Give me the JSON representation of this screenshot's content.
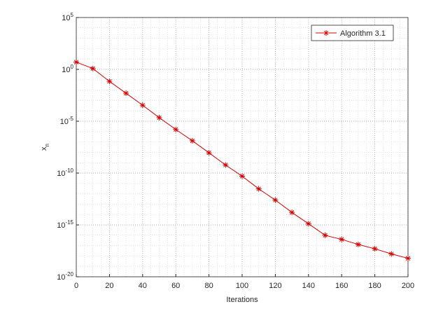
{
  "chart_data": {
    "type": "line",
    "xlabel": "Iterations",
    "ylabel": "x_n",
    "x": [
      0,
      10,
      20,
      30,
      40,
      50,
      60,
      70,
      80,
      90,
      100,
      110,
      120,
      130,
      140,
      150,
      160,
      170,
      180,
      190,
      200
    ],
    "series": [
      {
        "name": "Algorithm 3.1",
        "color": "#d40000",
        "values": [
          5,
          1.2,
          0.07,
          0.005,
          0.00035,
          2.2e-05,
          1.6e-06,
          1.3e-07,
          9e-09,
          6e-10,
          5e-11,
          3e-12,
          2.5e-13,
          1.6e-14,
          1.3e-15,
          1e-16,
          4e-17,
          1.3e-17,
          5e-18,
          1.6e-18,
          6e-19
        ]
      }
    ],
    "xlim": [
      0,
      200
    ],
    "xticks": [
      0,
      20,
      40,
      60,
      80,
      100,
      120,
      140,
      160,
      180,
      200
    ],
    "ylim": [
      1e-20,
      100000.0
    ],
    "yticks": [
      {
        "value": 1e-20,
        "label": "10^-20"
      },
      {
        "value": 1e-15,
        "label": "10^-15"
      },
      {
        "value": 1e-10,
        "label": "10^-10"
      },
      {
        "value": 1e-05,
        "label": "10^-5"
      },
      {
        "value": 1,
        "label": "10^0"
      },
      {
        "value": 100000.0,
        "label": "10^5"
      }
    ],
    "yscale": "log",
    "grid": true,
    "legend": "upper right"
  }
}
